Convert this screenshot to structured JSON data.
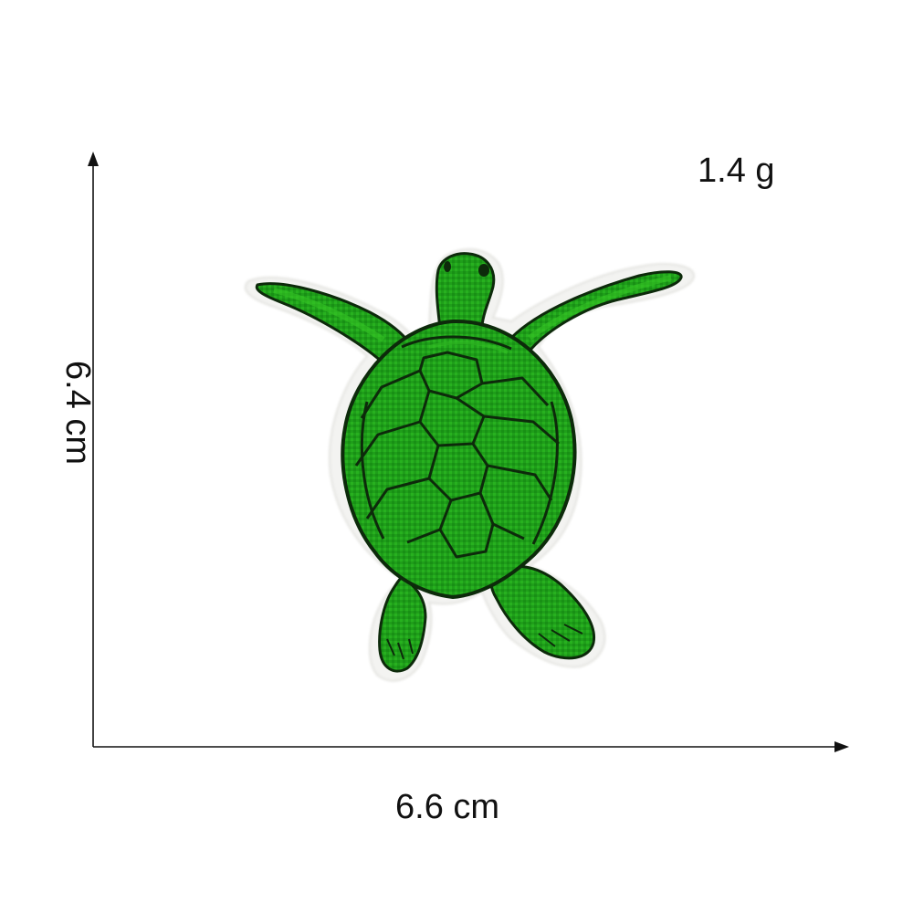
{
  "dimensions": {
    "width_label": "6.6 cm",
    "height_label": "6.4 cm",
    "weight_label": "1.4 g"
  },
  "product": {
    "icon": "sea-turtle-patch-icon",
    "colors": {
      "body": "#1f9e1a",
      "highlight": "#36c425",
      "outline": "#0d2a0b",
      "backing": "#f3f3f1",
      "axis": "#111111"
    }
  }
}
